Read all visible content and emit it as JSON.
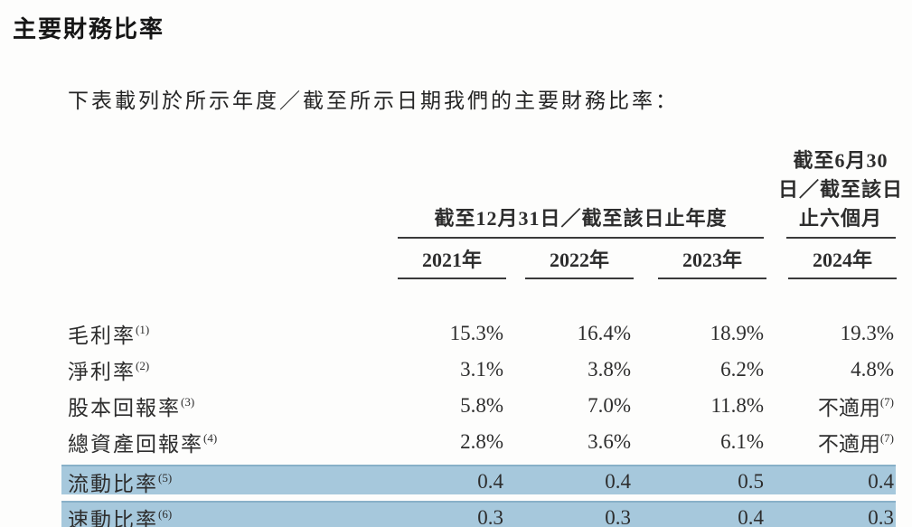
{
  "page": {
    "title": "主要財務比率",
    "intro": "下表載列於所示年度／截至所示日期我們的主要財務比率："
  },
  "table": {
    "group_headers": {
      "annual": "截至12月31日／截至該日止年度",
      "interim_lines": [
        "截至6月30",
        "日／截至該日",
        "止六個月"
      ]
    },
    "year_headers": [
      "2021年",
      "2022年",
      "2023年",
      "2024年"
    ],
    "rows": [
      {
        "label": "毛利率",
        "label_sup": "(1)",
        "highlight": false,
        "cells": [
          {
            "v": "15.3%"
          },
          {
            "v": "16.4%"
          },
          {
            "v": "18.9%"
          },
          {
            "v": "19.3%"
          }
        ]
      },
      {
        "label": "淨利率",
        "label_sup": "(2)",
        "highlight": false,
        "cells": [
          {
            "v": "3.1%"
          },
          {
            "v": "3.8%"
          },
          {
            "v": "6.2%"
          },
          {
            "v": "4.8%"
          }
        ]
      },
      {
        "label": "股本回報率",
        "label_sup": "(3)",
        "highlight": false,
        "cells": [
          {
            "v": "5.8%"
          },
          {
            "v": "7.0%"
          },
          {
            "v": "11.8%"
          },
          {
            "v": "不適用",
            "s": "(7)"
          }
        ]
      },
      {
        "label": "總資產回報率",
        "label_sup": "(4)",
        "highlight": false,
        "cells": [
          {
            "v": "2.8%"
          },
          {
            "v": "3.6%"
          },
          {
            "v": "6.1%"
          },
          {
            "v": "不適用",
            "s": "(7)"
          }
        ]
      },
      {
        "label": "流動比率",
        "label_sup": "(5)",
        "highlight": true,
        "cells": [
          {
            "v": "0.4"
          },
          {
            "v": "0.4"
          },
          {
            "v": "0.5"
          },
          {
            "v": "0.4"
          }
        ]
      },
      {
        "label": "速動比率",
        "label_sup": "(6)",
        "highlight": true,
        "cells": [
          {
            "v": "0.3"
          },
          {
            "v": "0.3"
          },
          {
            "v": "0.4"
          },
          {
            "v": "0.3"
          }
        ]
      }
    ]
  },
  "colors": {
    "highlight": "#a6c8dc",
    "highlight_edge": "#88b0c8",
    "rule": "#3a3a3a",
    "text": "#2d2d2d"
  }
}
